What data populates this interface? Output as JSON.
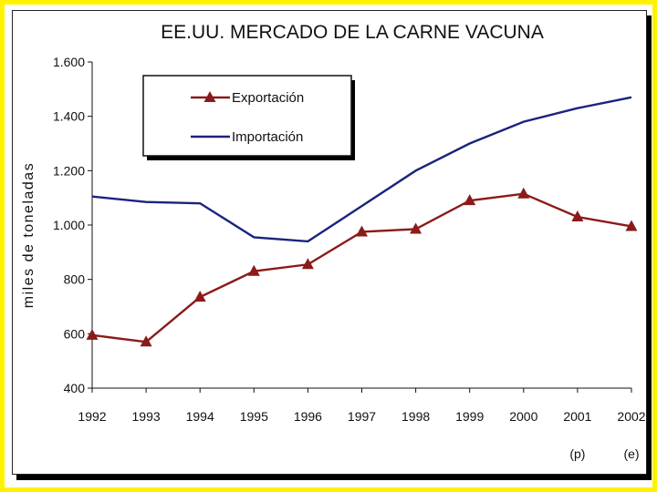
{
  "chart_data": {
    "type": "line",
    "title": "EE.UU. MERCADO DE LA CARNE VACUNA",
    "xlabel": "",
    "ylabel": "miles de toneladas",
    "categories": [
      "1992",
      "1993",
      "1994",
      "1995",
      "1996",
      "1997",
      "1998",
      "1999",
      "2000",
      "2001",
      "2002"
    ],
    "category_notes": [
      "",
      "",
      "",
      "",
      "",
      "",
      "",
      "",
      "",
      "(p)",
      "(e)"
    ],
    "ylim": [
      400,
      1600
    ],
    "yticks": [
      "400",
      "600",
      "800",
      "1.000",
      "1.200",
      "1.400",
      "1.600"
    ],
    "ytick_values": [
      400,
      600,
      800,
      1000,
      1200,
      1400,
      1600
    ],
    "series": [
      {
        "name": "Exportación",
        "color": "#8b1a1a",
        "marker": "triangle",
        "values": [
          595,
          570,
          735,
          830,
          855,
          975,
          985,
          1090,
          1115,
          1030,
          995
        ]
      },
      {
        "name": "Importación",
        "color": "#1a237e",
        "marker": "none",
        "values": [
          1105,
          1085,
          1080,
          955,
          940,
          1070,
          1200,
          1300,
          1380,
          1430,
          1470
        ]
      }
    ],
    "legend": "top-left",
    "grid": false
  }
}
